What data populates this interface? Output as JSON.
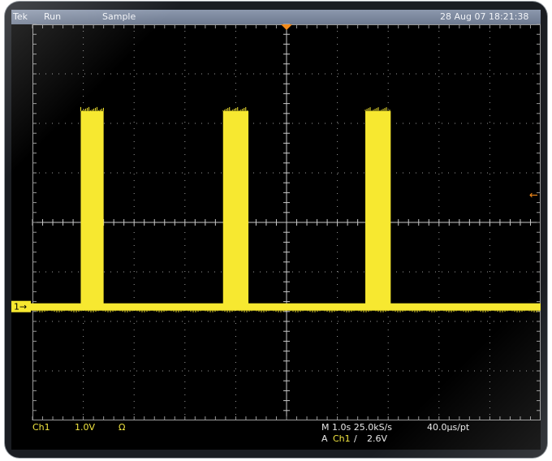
{
  "header": {
    "brand": "Tek",
    "mode": "Run",
    "acquisition": "Sample",
    "datetime": "28 Aug 07 18:21:38"
  },
  "channel_marker": {
    "label": "1→"
  },
  "trigger_level_marker": "←",
  "status": {
    "channel": "Ch1",
    "scale": "1.0V",
    "coupling_symbol": "Ω",
    "timebase": "M 1.0s 25.0kS/s",
    "record": "40.0μs/pt",
    "trigger_prefix": "A",
    "trigger_source": "Ch1",
    "trigger_slope": "∕",
    "trigger_level": "2.6V"
  },
  "waveform": {
    "pulses": [
      {
        "start_div": 0.95,
        "end_div": 1.4
      },
      {
        "start_div": 3.75,
        "end_div": 4.25
      },
      {
        "start_div": 6.55,
        "end_div": 7.05
      }
    ],
    "baseline_div": -1.7,
    "high_div": 2.25
  },
  "colors": {
    "trace": "#f7e830",
    "grid": "#9a9a9a",
    "bezel": "#1a1d22",
    "topbar": "#7d889e",
    "trigger_marker": "#f28a1a"
  }
}
